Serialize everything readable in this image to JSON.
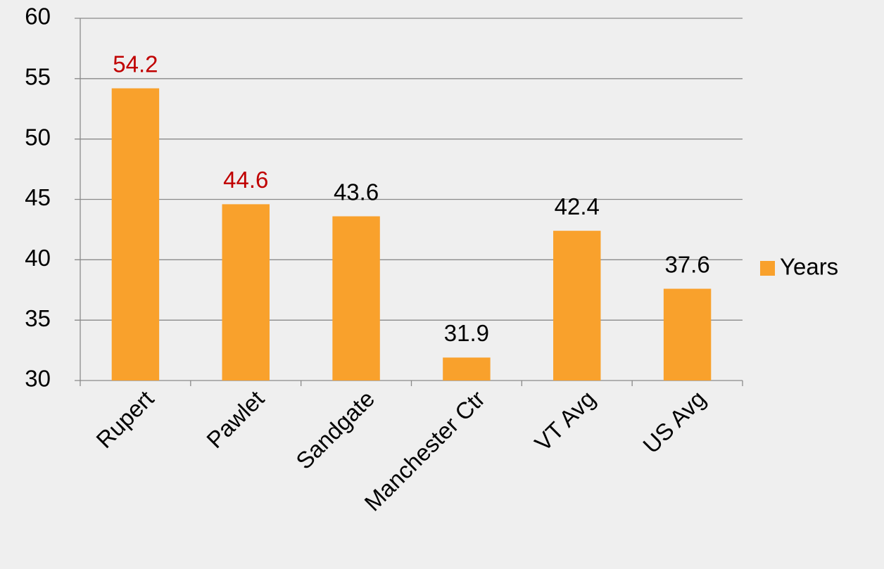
{
  "chart_data": {
    "type": "bar",
    "categories": [
      "Rupert",
      "Pawlet",
      "Sandgate",
      "Manchester Ctr",
      "VT Avg",
      "US Avg"
    ],
    "series": [
      {
        "name": "Years",
        "color": "#f9a12c",
        "values": [
          54.2,
          44.6,
          43.6,
          31.9,
          42.4,
          37.6
        ]
      }
    ],
    "label_colors": [
      "#c00000",
      "#c00000",
      "#000000",
      "#000000",
      "#000000",
      "#000000"
    ],
    "ylim": [
      30,
      60
    ],
    "yticks": [
      30,
      35,
      40,
      45,
      50,
      55,
      60
    ],
    "grid": true,
    "legend": "right"
  }
}
